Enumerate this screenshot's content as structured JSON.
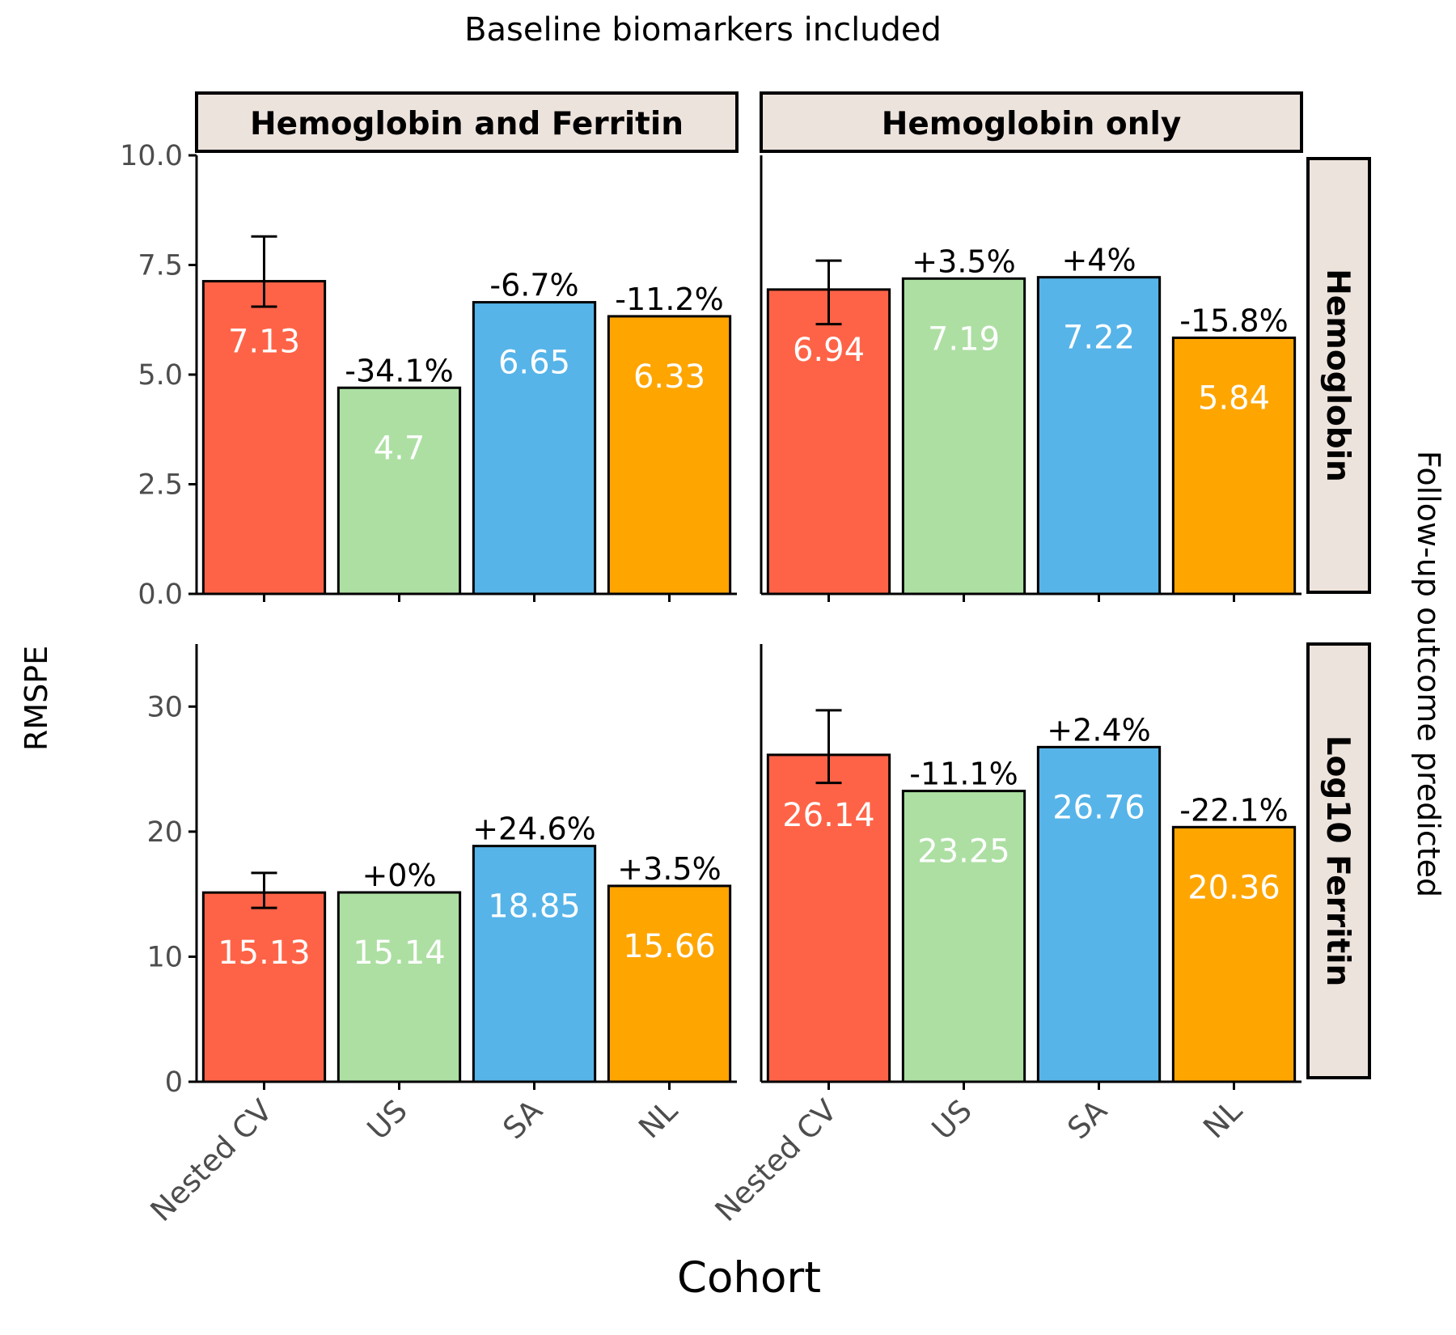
{
  "title": "Baseline biomarkers included",
  "xlabel": "Cohort",
  "ylabel": "RMSPE",
  "right_label": "Follow-up outcome predicted",
  "col_strips": [
    "Hemoglobin and Ferritin",
    "Hemoglobin only"
  ],
  "row_strips": [
    "Hemoglobin",
    "Log10 Ferritin"
  ],
  "colors": {
    "Nested CV": "#ff6347",
    "US": "#addfa3",
    "SA": "#56b4e9",
    "NL": "#ffa500",
    "strip_fill": "#ede3dd"
  },
  "chart_data": {
    "type": "bar",
    "facets": "2x2 grid (rows: outcome predicted, columns: baseline biomarkers included)",
    "categories": [
      "Nested CV",
      "US",
      "SA",
      "NL"
    ],
    "rows": [
      {
        "name": "Hemoglobin",
        "ylim": [
          0,
          10
        ],
        "ticks": [
          0,
          2.5,
          5,
          7.5,
          10
        ],
        "tick_labels": [
          "0.0",
          "2.5",
          "5.0",
          "7.5",
          "10.0"
        ]
      },
      {
        "name": "Log10 Ferritin",
        "ylim": [
          0,
          35
        ],
        "ticks": [
          0,
          10,
          20,
          30
        ],
        "tick_labels": [
          "0",
          "10",
          "20",
          "30"
        ]
      }
    ],
    "panels": [
      {
        "row": 0,
        "col": 0,
        "values": [
          7.13,
          4.7,
          6.65,
          6.33
        ],
        "value_labels": [
          "7.13",
          "4.7",
          "6.65",
          "6.33"
        ],
        "pct_labels": [
          "",
          "-34.1%",
          "-6.7%",
          "-11.2%"
        ],
        "error": [
          6.55,
          8.15
        ]
      },
      {
        "row": 0,
        "col": 1,
        "values": [
          6.94,
          7.19,
          7.22,
          5.84
        ],
        "value_labels": [
          "6.94",
          "7.19",
          "7.22",
          "5.84"
        ],
        "pct_labels": [
          "",
          "+3.5%",
          "+4%",
          "-15.8%"
        ],
        "error": [
          6.15,
          7.6
        ]
      },
      {
        "row": 1,
        "col": 0,
        "values": [
          15.13,
          15.14,
          18.85,
          15.66
        ],
        "value_labels": [
          "15.13",
          "15.14",
          "18.85",
          "15.66"
        ],
        "pct_labels": [
          "",
          "+0%",
          "+24.6%",
          "+3.5%"
        ],
        "error": [
          13.9,
          16.7
        ]
      },
      {
        "row": 1,
        "col": 1,
        "values": [
          26.14,
          23.25,
          26.76,
          20.36
        ],
        "value_labels": [
          "26.14",
          "23.25",
          "26.76",
          "20.36"
        ],
        "pct_labels": [
          "",
          "-11.1%",
          "+2.4%",
          "-22.1%"
        ],
        "error": [
          23.9,
          29.7
        ]
      }
    ]
  }
}
